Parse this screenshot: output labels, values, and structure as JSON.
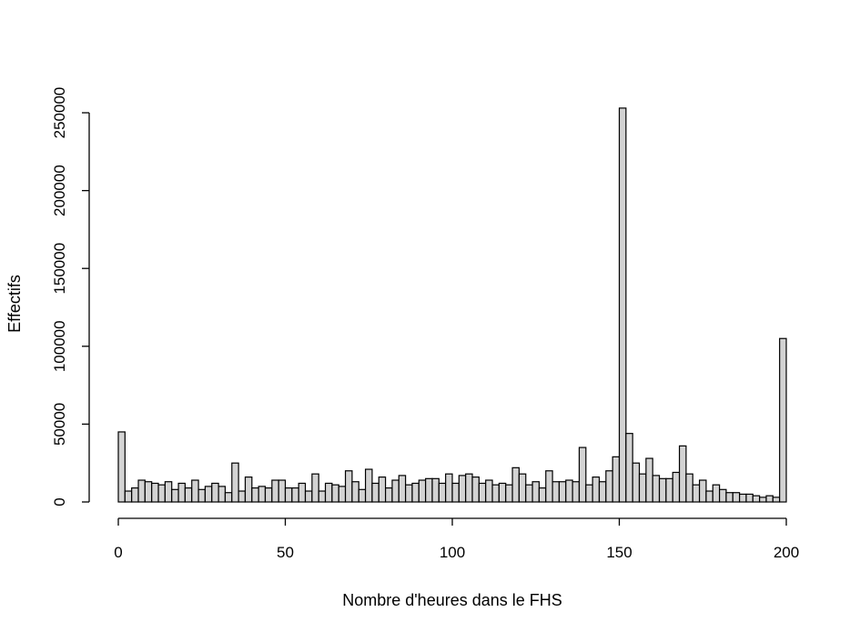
{
  "chart_data": {
    "type": "bar",
    "xlabel": "Nombre d'heures dans le FHS",
    "ylabel": "Effectifs",
    "xlim": [
      0,
      200
    ],
    "ylim": [
      0,
      255000
    ],
    "x_ticks": [
      0,
      50,
      100,
      150,
      200
    ],
    "y_ticks": [
      0,
      50000,
      100000,
      150000,
      200000,
      250000
    ],
    "x_tick_labels": [
      "0",
      "50",
      "100",
      "150",
      "200"
    ],
    "y_tick_labels": [
      "0",
      "50000",
      "100000",
      "150000",
      "200000",
      "250000"
    ],
    "bin_width": 2,
    "bin_starts": [
      0,
      2,
      4,
      6,
      8,
      10,
      12,
      14,
      16,
      18,
      20,
      22,
      24,
      26,
      28,
      30,
      32,
      34,
      36,
      38,
      40,
      42,
      44,
      46,
      48,
      50,
      52,
      54,
      56,
      58,
      60,
      62,
      64,
      66,
      68,
      70,
      72,
      74,
      76,
      78,
      80,
      82,
      84,
      86,
      88,
      90,
      92,
      94,
      96,
      98,
      100,
      102,
      104,
      106,
      108,
      110,
      112,
      114,
      116,
      118,
      120,
      122,
      124,
      126,
      128,
      130,
      132,
      134,
      136,
      138,
      140,
      142,
      144,
      146,
      148,
      150,
      152,
      154,
      156,
      158,
      160,
      162,
      164,
      166,
      168,
      170,
      172,
      174,
      176,
      178,
      180,
      182,
      184,
      186,
      188,
      190,
      192,
      194,
      196,
      198
    ],
    "values": [
      45000,
      7000,
      9000,
      14000,
      13000,
      12000,
      11000,
      13000,
      8000,
      12000,
      9000,
      14000,
      8000,
      10000,
      12000,
      10000,
      6000,
      25000,
      7000,
      16000,
      9000,
      10000,
      9000,
      14000,
      14000,
      9000,
      9000,
      12000,
      7000,
      18000,
      7000,
      12000,
      11000,
      10000,
      20000,
      13000,
      8000,
      21000,
      12000,
      16000,
      9000,
      14000,
      17000,
      11000,
      12000,
      14000,
      15000,
      15000,
      12000,
      18000,
      12000,
      17000,
      18000,
      16000,
      12000,
      14000,
      11000,
      12000,
      11000,
      22000,
      18000,
      11000,
      13000,
      9000,
      20000,
      13000,
      13000,
      14000,
      13000,
      35000,
      11000,
      16000,
      13000,
      20000,
      29000,
      253000,
      44000,
      25000,
      18000,
      28000,
      17000,
      15000,
      15000,
      19000,
      36000,
      18000,
      11000,
      14000,
      7000,
      11000,
      8000,
      6000,
      6000,
      5000,
      5000,
      4000,
      3000,
      4000,
      3000,
      105000
    ],
    "grid": false,
    "legend": "none"
  }
}
